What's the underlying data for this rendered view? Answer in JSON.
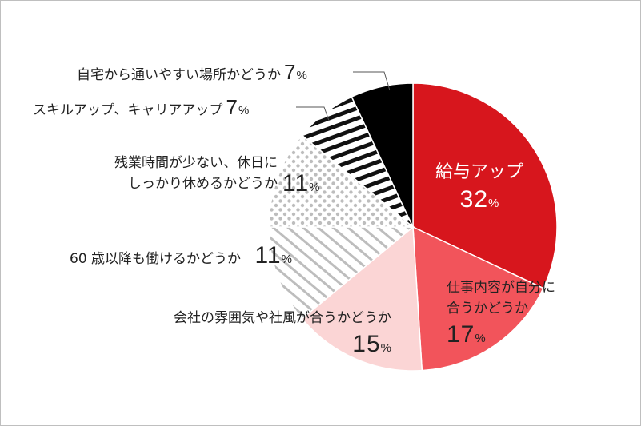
{
  "chart_data": {
    "type": "pie",
    "unit": "%",
    "slices": [
      {
        "label": "給与アップ",
        "value": 32,
        "color": "#d7161d",
        "pattern": "solid"
      },
      {
        "label": "仕事内容が自分に合うかどうか",
        "value": 17,
        "color": "#f2545b",
        "pattern": "solid"
      },
      {
        "label": "会社の雰囲気や社風が合うかどうか",
        "value": 15,
        "color": "#fbd5d5",
        "pattern": "solid"
      },
      {
        "label": "60 歳以降も働けるかどうか",
        "value": 11,
        "color": "#bdbdbd",
        "pattern": "diagonal-stripes"
      },
      {
        "label": "残業時間が少ない、休日にしっかり休めるかどうか",
        "value": 11,
        "color": "#bdbdbd",
        "pattern": "dots"
      },
      {
        "label": "スキルアップ、キャリアアップ",
        "value": 7,
        "color": "#111111",
        "pattern": "horizontal-stripes"
      },
      {
        "label": "自宅から通いやすい場所かどうか",
        "value": 7,
        "color": "#000000",
        "pattern": "solid"
      }
    ]
  },
  "labels": {
    "salary": {
      "line1": "給与アップ",
      "pct": "32",
      "unit": "%"
    },
    "work_content": {
      "line1": "仕事内容が自分に",
      "line2": "合うかどうか",
      "pct": "17",
      "unit": "%"
    },
    "atmosphere": {
      "line1": "会社の雰囲気や社風が合うかどうか",
      "pct": "15",
      "unit": "%"
    },
    "after60": {
      "line1": "60 歳以降も働けるかどうか",
      "pct": "11",
      "unit": "%"
    },
    "overtime": {
      "line1": "残業時間が少ない、休日に",
      "line2": "しっかり休めるかどうか",
      "pct": "11",
      "unit": "%"
    },
    "skillup": {
      "line1": "スキルアップ、キャリアアップ",
      "pct": "7",
      "unit": "%"
    },
    "commute": {
      "line1": "自宅から通いやすい場所かどうか",
      "pct": "7",
      "unit": "%"
    }
  }
}
